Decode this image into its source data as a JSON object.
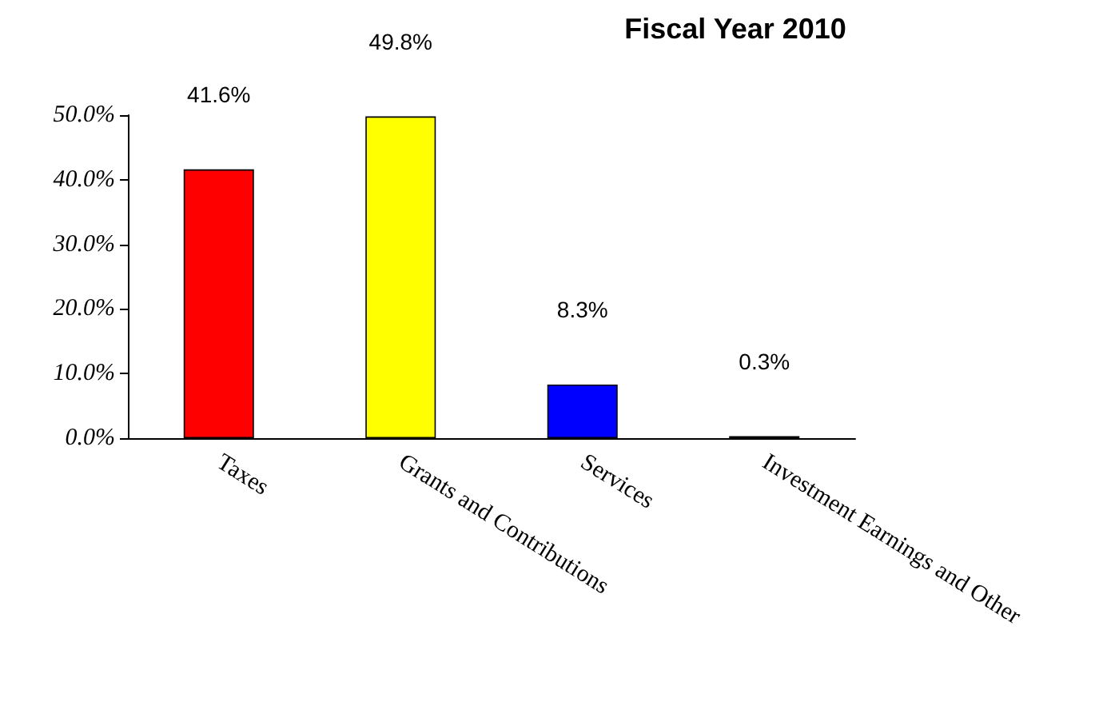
{
  "chart_data": {
    "type": "bar",
    "title": "Fiscal Year 2010",
    "categories": [
      "Taxes",
      "Grants and Contributions",
      "Services",
      "Investment Earnings and Other"
    ],
    "values": [
      41.6,
      49.8,
      8.3,
      0.3
    ],
    "colors": [
      "#ff0000",
      "#ffff00",
      "#0000ff",
      "#006400"
    ],
    "value_labels": [
      "41.6%",
      "49.8%",
      "8.3%",
      "0.3%"
    ],
    "ylim": [
      0,
      50
    ],
    "yticks": [
      {
        "value": 0,
        "label": "0.0%"
      },
      {
        "value": 10,
        "label": "10.0%"
      },
      {
        "value": 20,
        "label": "20.0%"
      },
      {
        "value": 30,
        "label": "30.0%"
      },
      {
        "value": 40,
        "label": "40.0%"
      },
      {
        "value": 50,
        "label": "50.0%"
      }
    ],
    "grid": false
  }
}
